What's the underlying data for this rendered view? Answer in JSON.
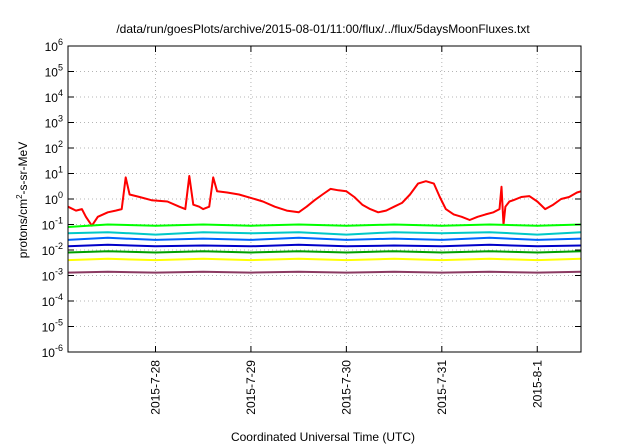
{
  "chart_data": {
    "type": "line",
    "title": "/data/run/goesPlots/archive/2015-08-01/11:00/flux/../flux/5daysMoonFluxes.txt",
    "xlabel": "Coordinated Universal Time (UTC)",
    "ylabel": {
      "base": "protons/cm",
      "sup": "2",
      "rest": "-s-sr-MeV"
    },
    "yscale": "log",
    "ylim": [
      1e-06,
      1000000.0
    ],
    "xlim": [
      "2015-07-27 02:00",
      "2015-08-01 11:00"
    ],
    "grid": true,
    "legend": "none",
    "x_ticks": [
      "2015-7-28",
      "2015-7-29",
      "2015-7-30",
      "2015-7-31",
      "2015-8-1"
    ],
    "y_ticks": [
      {
        "base": "10",
        "exp": "-6"
      },
      {
        "base": "10",
        "exp": "-5"
      },
      {
        "base": "10",
        "exp": "-4"
      },
      {
        "base": "10",
        "exp": "-3"
      },
      {
        "base": "10",
        "exp": "-2"
      },
      {
        "base": "10",
        "exp": "-1"
      },
      {
        "base": "10",
        "exp": "0"
      },
      {
        "base": "10",
        "exp": "1"
      },
      {
        "base": "10",
        "exp": "2"
      },
      {
        "base": "10",
        "exp": "3"
      },
      {
        "base": "10",
        "exp": "4"
      },
      {
        "base": "10",
        "exp": "5"
      },
      {
        "base": "10",
        "exp": "6"
      }
    ],
    "series": [
      {
        "color": "#ff0000",
        "points": [
          [
            "2015-07-27 02:00",
            0.5
          ],
          [
            "2015-07-27 04:00",
            0.35
          ],
          [
            "2015-07-27 05:30",
            0.4
          ],
          [
            "2015-07-27 06:30",
            0.2
          ],
          [
            "2015-07-27 08:00",
            0.09
          ],
          [
            "2015-07-27 09:30",
            0.2
          ],
          [
            "2015-07-27 12:00",
            0.3
          ],
          [
            "2015-07-27 14:00",
            0.35
          ],
          [
            "2015-07-27 15:30",
            0.4
          ],
          [
            "2015-07-27 16:30",
            7
          ],
          [
            "2015-07-27 17:30",
            1.5
          ],
          [
            "2015-07-27 20:00",
            1.2
          ],
          [
            "2015-07-27 23:00",
            0.9
          ],
          [
            "2015-07-28 03:00",
            0.8
          ],
          [
            "2015-07-28 06:00",
            0.5
          ],
          [
            "2015-07-28 07:30",
            0.4
          ],
          [
            "2015-07-28 08:30",
            8
          ],
          [
            "2015-07-28 09:30",
            0.6
          ],
          [
            "2015-07-28 11:00",
            0.5
          ],
          [
            "2015-07-28 12:00",
            0.4
          ],
          [
            "2015-07-28 13:30",
            0.5
          ],
          [
            "2015-07-28 14:30",
            7
          ],
          [
            "2015-07-28 15:30",
            2
          ],
          [
            "2015-07-28 18:00",
            1.8
          ],
          [
            "2015-07-28 21:00",
            1.5
          ],
          [
            "2015-07-29 00:00",
            1.1
          ],
          [
            "2015-07-29 03:00",
            0.8
          ],
          [
            "2015-07-29 06:00",
            0.5
          ],
          [
            "2015-07-29 09:00",
            0.35
          ],
          [
            "2015-07-29 12:00",
            0.3
          ],
          [
            "2015-07-29 14:00",
            0.5
          ],
          [
            "2015-07-29 16:00",
            0.9
          ],
          [
            "2015-07-29 18:00",
            1.5
          ],
          [
            "2015-07-29 20:00",
            2.5
          ],
          [
            "2015-07-29 22:00",
            2.2
          ],
          [
            "2015-07-30 00:00",
            2
          ],
          [
            "2015-07-30 02:00",
            1.2
          ],
          [
            "2015-07-30 04:00",
            0.6
          ],
          [
            "2015-07-30 06:00",
            0.4
          ],
          [
            "2015-07-30 08:00",
            0.3
          ],
          [
            "2015-07-30 10:00",
            0.35
          ],
          [
            "2015-07-30 12:00",
            0.5
          ],
          [
            "2015-07-30 14:00",
            0.7
          ],
          [
            "2015-07-30 16:00",
            1.5
          ],
          [
            "2015-07-30 18:00",
            4
          ],
          [
            "2015-07-30 20:00",
            5
          ],
          [
            "2015-07-30 22:00",
            4
          ],
          [
            "2015-07-30 23:30",
            1.2
          ],
          [
            "2015-07-31 01:00",
            0.4
          ],
          [
            "2015-07-31 03:00",
            0.25
          ],
          [
            "2015-07-31 05:00",
            0.2
          ],
          [
            "2015-07-31 07:00",
            0.15
          ],
          [
            "2015-07-31 09:00",
            0.2
          ],
          [
            "2015-07-31 11:00",
            0.25
          ],
          [
            "2015-07-31 13:00",
            0.3
          ],
          [
            "2015-07-31 14:30",
            0.4
          ],
          [
            "2015-07-31 15:00",
            3
          ],
          [
            "2015-07-31 15:30",
            0.1
          ],
          [
            "2015-07-31 16:00",
            0.5
          ],
          [
            "2015-07-31 17:00",
            0.8
          ],
          [
            "2015-07-31 18:00",
            0.9
          ],
          [
            "2015-07-31 20:00",
            1.2
          ],
          [
            "2015-07-31 22:00",
            1.3
          ],
          [
            "2015-08-01 00:00",
            0.8
          ],
          [
            "2015-08-01 02:00",
            0.4
          ],
          [
            "2015-08-01 04:00",
            0.6
          ],
          [
            "2015-08-01 06:00",
            1
          ],
          [
            "2015-08-01 08:00",
            1.2
          ],
          [
            "2015-08-01 10:00",
            1.8
          ],
          [
            "2015-08-01 11:00",
            2
          ]
        ]
      },
      {
        "color": "#00ff00",
        "points": [
          [
            "2015-07-27 02:00",
            0.08
          ],
          [
            "2015-07-27 12:00",
            0.1
          ],
          [
            "2015-07-28 00:00",
            0.09
          ],
          [
            "2015-07-28 12:00",
            0.1
          ],
          [
            "2015-07-29 00:00",
            0.09
          ],
          [
            "2015-07-29 12:00",
            0.1
          ],
          [
            "2015-07-30 00:00",
            0.09
          ],
          [
            "2015-07-30 12:00",
            0.1
          ],
          [
            "2015-07-31 00:00",
            0.09
          ],
          [
            "2015-07-31 12:00",
            0.1
          ],
          [
            "2015-08-01 00:00",
            0.09
          ],
          [
            "2015-08-01 11:00",
            0.1
          ]
        ]
      },
      {
        "color": "#00c8c8",
        "points": [
          [
            "2015-07-27 02:00",
            0.045
          ],
          [
            "2015-07-27 12:00",
            0.05
          ],
          [
            "2015-07-28 00:00",
            0.04
          ],
          [
            "2015-07-28 12:00",
            0.05
          ],
          [
            "2015-07-29 00:00",
            0.045
          ],
          [
            "2015-07-29 12:00",
            0.05
          ],
          [
            "2015-07-30 00:00",
            0.04
          ],
          [
            "2015-07-30 12:00",
            0.05
          ],
          [
            "2015-07-31 00:00",
            0.045
          ],
          [
            "2015-07-31 12:00",
            0.05
          ],
          [
            "2015-08-01 00:00",
            0.04
          ],
          [
            "2015-08-01 11:00",
            0.05
          ]
        ]
      },
      {
        "color": "#0064ff",
        "points": [
          [
            "2015-07-27 02:00",
            0.025
          ],
          [
            "2015-07-27 12:00",
            0.03
          ],
          [
            "2015-07-28 00:00",
            0.025
          ],
          [
            "2015-07-28 12:00",
            0.028
          ],
          [
            "2015-07-29 00:00",
            0.025
          ],
          [
            "2015-07-29 12:00",
            0.03
          ],
          [
            "2015-07-30 00:00",
            0.025
          ],
          [
            "2015-07-30 12:00",
            0.028
          ],
          [
            "2015-07-31 00:00",
            0.025
          ],
          [
            "2015-07-31 12:00",
            0.03
          ],
          [
            "2015-08-01 00:00",
            0.025
          ],
          [
            "2015-08-01 11:00",
            0.028
          ]
        ]
      },
      {
        "color": "#0000c8",
        "points": [
          [
            "2015-07-27 02:00",
            0.014
          ],
          [
            "2015-07-27 12:00",
            0.016
          ],
          [
            "2015-07-28 00:00",
            0.014
          ],
          [
            "2015-07-28 12:00",
            0.015
          ],
          [
            "2015-07-29 00:00",
            0.014
          ],
          [
            "2015-07-29 12:00",
            0.016
          ],
          [
            "2015-07-30 00:00",
            0.014
          ],
          [
            "2015-07-30 12:00",
            0.015
          ],
          [
            "2015-07-31 00:00",
            0.014
          ],
          [
            "2015-07-31 12:00",
            0.016
          ],
          [
            "2015-08-01 00:00",
            0.014
          ],
          [
            "2015-08-01 11:00",
            0.015
          ]
        ]
      },
      {
        "color": "#00a000",
        "points": [
          [
            "2015-07-27 02:00",
            0.008
          ],
          [
            "2015-07-27 12:00",
            0.009
          ],
          [
            "2015-07-28 00:00",
            0.008
          ],
          [
            "2015-07-28 12:00",
            0.009
          ],
          [
            "2015-07-29 00:00",
            0.008
          ],
          [
            "2015-07-29 12:00",
            0.009
          ],
          [
            "2015-07-30 00:00",
            0.008
          ],
          [
            "2015-07-30 12:00",
            0.009
          ],
          [
            "2015-07-31 00:00",
            0.008
          ],
          [
            "2015-07-31 12:00",
            0.009
          ],
          [
            "2015-08-01 00:00",
            0.008
          ],
          [
            "2015-08-01 11:00",
            0.009
          ]
        ]
      },
      {
        "color": "#ffff00",
        "points": [
          [
            "2015-07-27 02:00",
            0.004
          ],
          [
            "2015-07-27 12:00",
            0.0045
          ],
          [
            "2015-07-28 00:00",
            0.004
          ],
          [
            "2015-07-28 12:00",
            0.0045
          ],
          [
            "2015-07-29 00:00",
            0.004
          ],
          [
            "2015-07-29 12:00",
            0.0045
          ],
          [
            "2015-07-30 00:00",
            0.004
          ],
          [
            "2015-07-30 12:00",
            0.0045
          ],
          [
            "2015-07-31 00:00",
            0.004
          ],
          [
            "2015-07-31 12:00",
            0.0045
          ],
          [
            "2015-08-01 00:00",
            0.004
          ],
          [
            "2015-08-01 11:00",
            0.0045
          ]
        ]
      },
      {
        "color": "#8b3a62",
        "points": [
          [
            "2015-07-27 02:00",
            0.0013
          ],
          [
            "2015-07-27 12:00",
            0.0014
          ],
          [
            "2015-07-28 00:00",
            0.0013
          ],
          [
            "2015-07-28 12:00",
            0.0014
          ],
          [
            "2015-07-29 00:00",
            0.0013
          ],
          [
            "2015-07-29 12:00",
            0.0014
          ],
          [
            "2015-07-30 00:00",
            0.0013
          ],
          [
            "2015-07-30 12:00",
            0.0014
          ],
          [
            "2015-07-31 00:00",
            0.0013
          ],
          [
            "2015-07-31 12:00",
            0.0014
          ],
          [
            "2015-08-01 00:00",
            0.0013
          ],
          [
            "2015-08-01 11:00",
            0.0014
          ]
        ]
      }
    ]
  }
}
